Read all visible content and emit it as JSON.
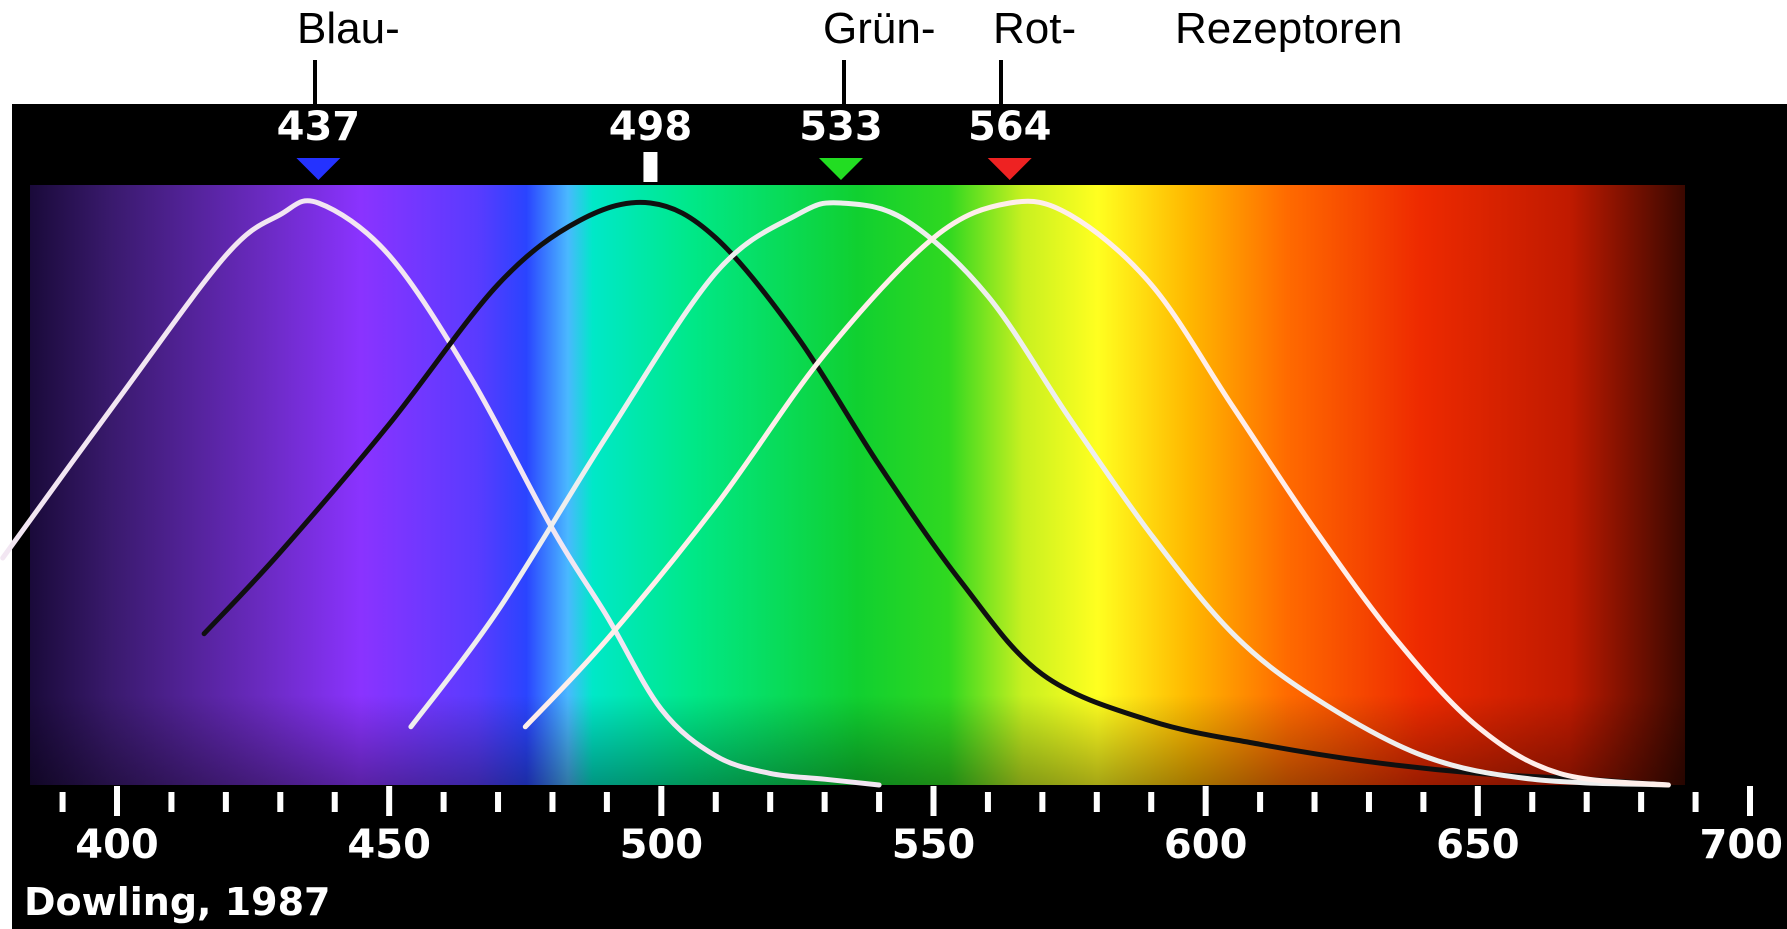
{
  "header": {
    "blue": "Blau-",
    "green": "Grün-",
    "red": "Rot-",
    "receptors": "Rezeptoren"
  },
  "credit": "Dowling, 1987",
  "chart_data": {
    "type": "line",
    "x_unit": "nm",
    "xlim": [
      400,
      700
    ],
    "ylim": [
      0,
      1
    ],
    "x_ticks": [
      400,
      450,
      500,
      550,
      600,
      650,
      700
    ],
    "peaks": [
      {
        "value": "437",
        "wavelength": 437,
        "color": "#2432ff",
        "marker": "triangle"
      },
      {
        "value": "498",
        "wavelength": 498,
        "color": "#ffffff",
        "marker": "bar"
      },
      {
        "value": "533",
        "wavelength": 533,
        "color": "#22dd22",
        "marker": "triangle"
      },
      {
        "value": "564",
        "wavelength": 564,
        "color": "#ee2222",
        "marker": "triangle"
      }
    ],
    "series": [
      {
        "peak": 437,
        "color": "#f2e6f2",
        "x": [
          379,
          400,
          420,
          430,
          437,
          450,
          465,
          480,
          490,
          500,
          510,
          520,
          530,
          540
        ],
        "y": [
          0.39,
          0.66,
          0.91,
          0.98,
          1.0,
          0.91,
          0.7,
          0.44,
          0.29,
          0.13,
          0.05,
          0.02,
          0.01,
          0.0
        ]
      },
      {
        "peak": 498,
        "color": "#101010",
        "x": [
          416,
          430,
          450,
          470,
          485,
          498,
          510,
          525,
          540,
          555,
          570,
          590,
          610,
          630,
          650,
          670,
          685
        ],
        "y": [
          0.26,
          0.4,
          0.62,
          0.86,
          0.97,
          1.0,
          0.94,
          0.77,
          0.55,
          0.35,
          0.19,
          0.11,
          0.07,
          0.04,
          0.02,
          0.01,
          0.0
        ]
      },
      {
        "peak": 533,
        "color": "#eeeeee",
        "x": [
          454,
          470,
          490,
          510,
          525,
          533,
          545,
          560,
          575,
          590,
          605,
          620,
          640,
          660,
          685
        ],
        "y": [
          0.1,
          0.3,
          0.6,
          0.88,
          0.98,
          1.0,
          0.97,
          0.84,
          0.63,
          0.43,
          0.26,
          0.15,
          0.05,
          0.01,
          0.0
        ]
      },
      {
        "peak": 564,
        "color": "#ffeeea",
        "x": [
          475,
          490,
          510,
          530,
          550,
          564,
          575,
          590,
          605,
          620,
          635,
          650,
          665,
          685
        ],
        "y": [
          0.1,
          0.25,
          0.48,
          0.74,
          0.94,
          1.0,
          0.98,
          0.86,
          0.65,
          0.44,
          0.25,
          0.1,
          0.02,
          0.0
        ]
      }
    ]
  }
}
